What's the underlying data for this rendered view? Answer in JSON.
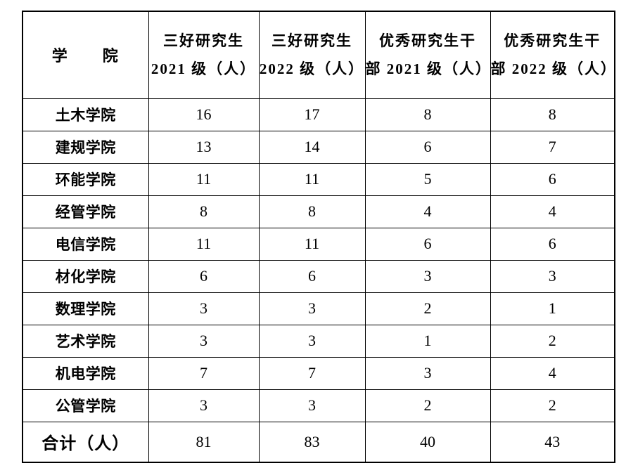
{
  "page": {
    "background_color": "#ffffff",
    "border_color": "#000000",
    "text_color": "#000000"
  },
  "table": {
    "header": {
      "college": "学　　院",
      "columns": [
        {
          "line1": "三好研究生",
          "line2": "2021 级（人）"
        },
        {
          "line1": "三好研究生",
          "line2": "2022 级（人）"
        },
        {
          "line1": "优秀研究生干",
          "line2": "部 2021 级（人）"
        },
        {
          "line1": "优秀研究生干",
          "line2": "部 2022 级（人）"
        }
      ]
    },
    "rows": [
      {
        "college": "土木学院",
        "values": [
          "16",
          "17",
          "8",
          "8"
        ]
      },
      {
        "college": "建规学院",
        "values": [
          "13",
          "14",
          "6",
          "7"
        ]
      },
      {
        "college": "环能学院",
        "values": [
          "11",
          "11",
          "5",
          "6"
        ]
      },
      {
        "college": "经管学院",
        "values": [
          "8",
          "8",
          "4",
          "4"
        ]
      },
      {
        "college": "电信学院",
        "values": [
          "11",
          "11",
          "6",
          "6"
        ]
      },
      {
        "college": "材化学院",
        "values": [
          "6",
          "6",
          "3",
          "3"
        ]
      },
      {
        "college": "数理学院",
        "values": [
          "3",
          "3",
          "2",
          "1"
        ]
      },
      {
        "college": "艺术学院",
        "values": [
          "3",
          "3",
          "1",
          "2"
        ]
      },
      {
        "college": "机电学院",
        "values": [
          "7",
          "7",
          "3",
          "4"
        ]
      },
      {
        "college": "公管学院",
        "values": [
          "3",
          "3",
          "2",
          "2"
        ]
      }
    ],
    "total": {
      "label": "合计（人）",
      "values": [
        "81",
        "83",
        "40",
        "43"
      ]
    }
  }
}
